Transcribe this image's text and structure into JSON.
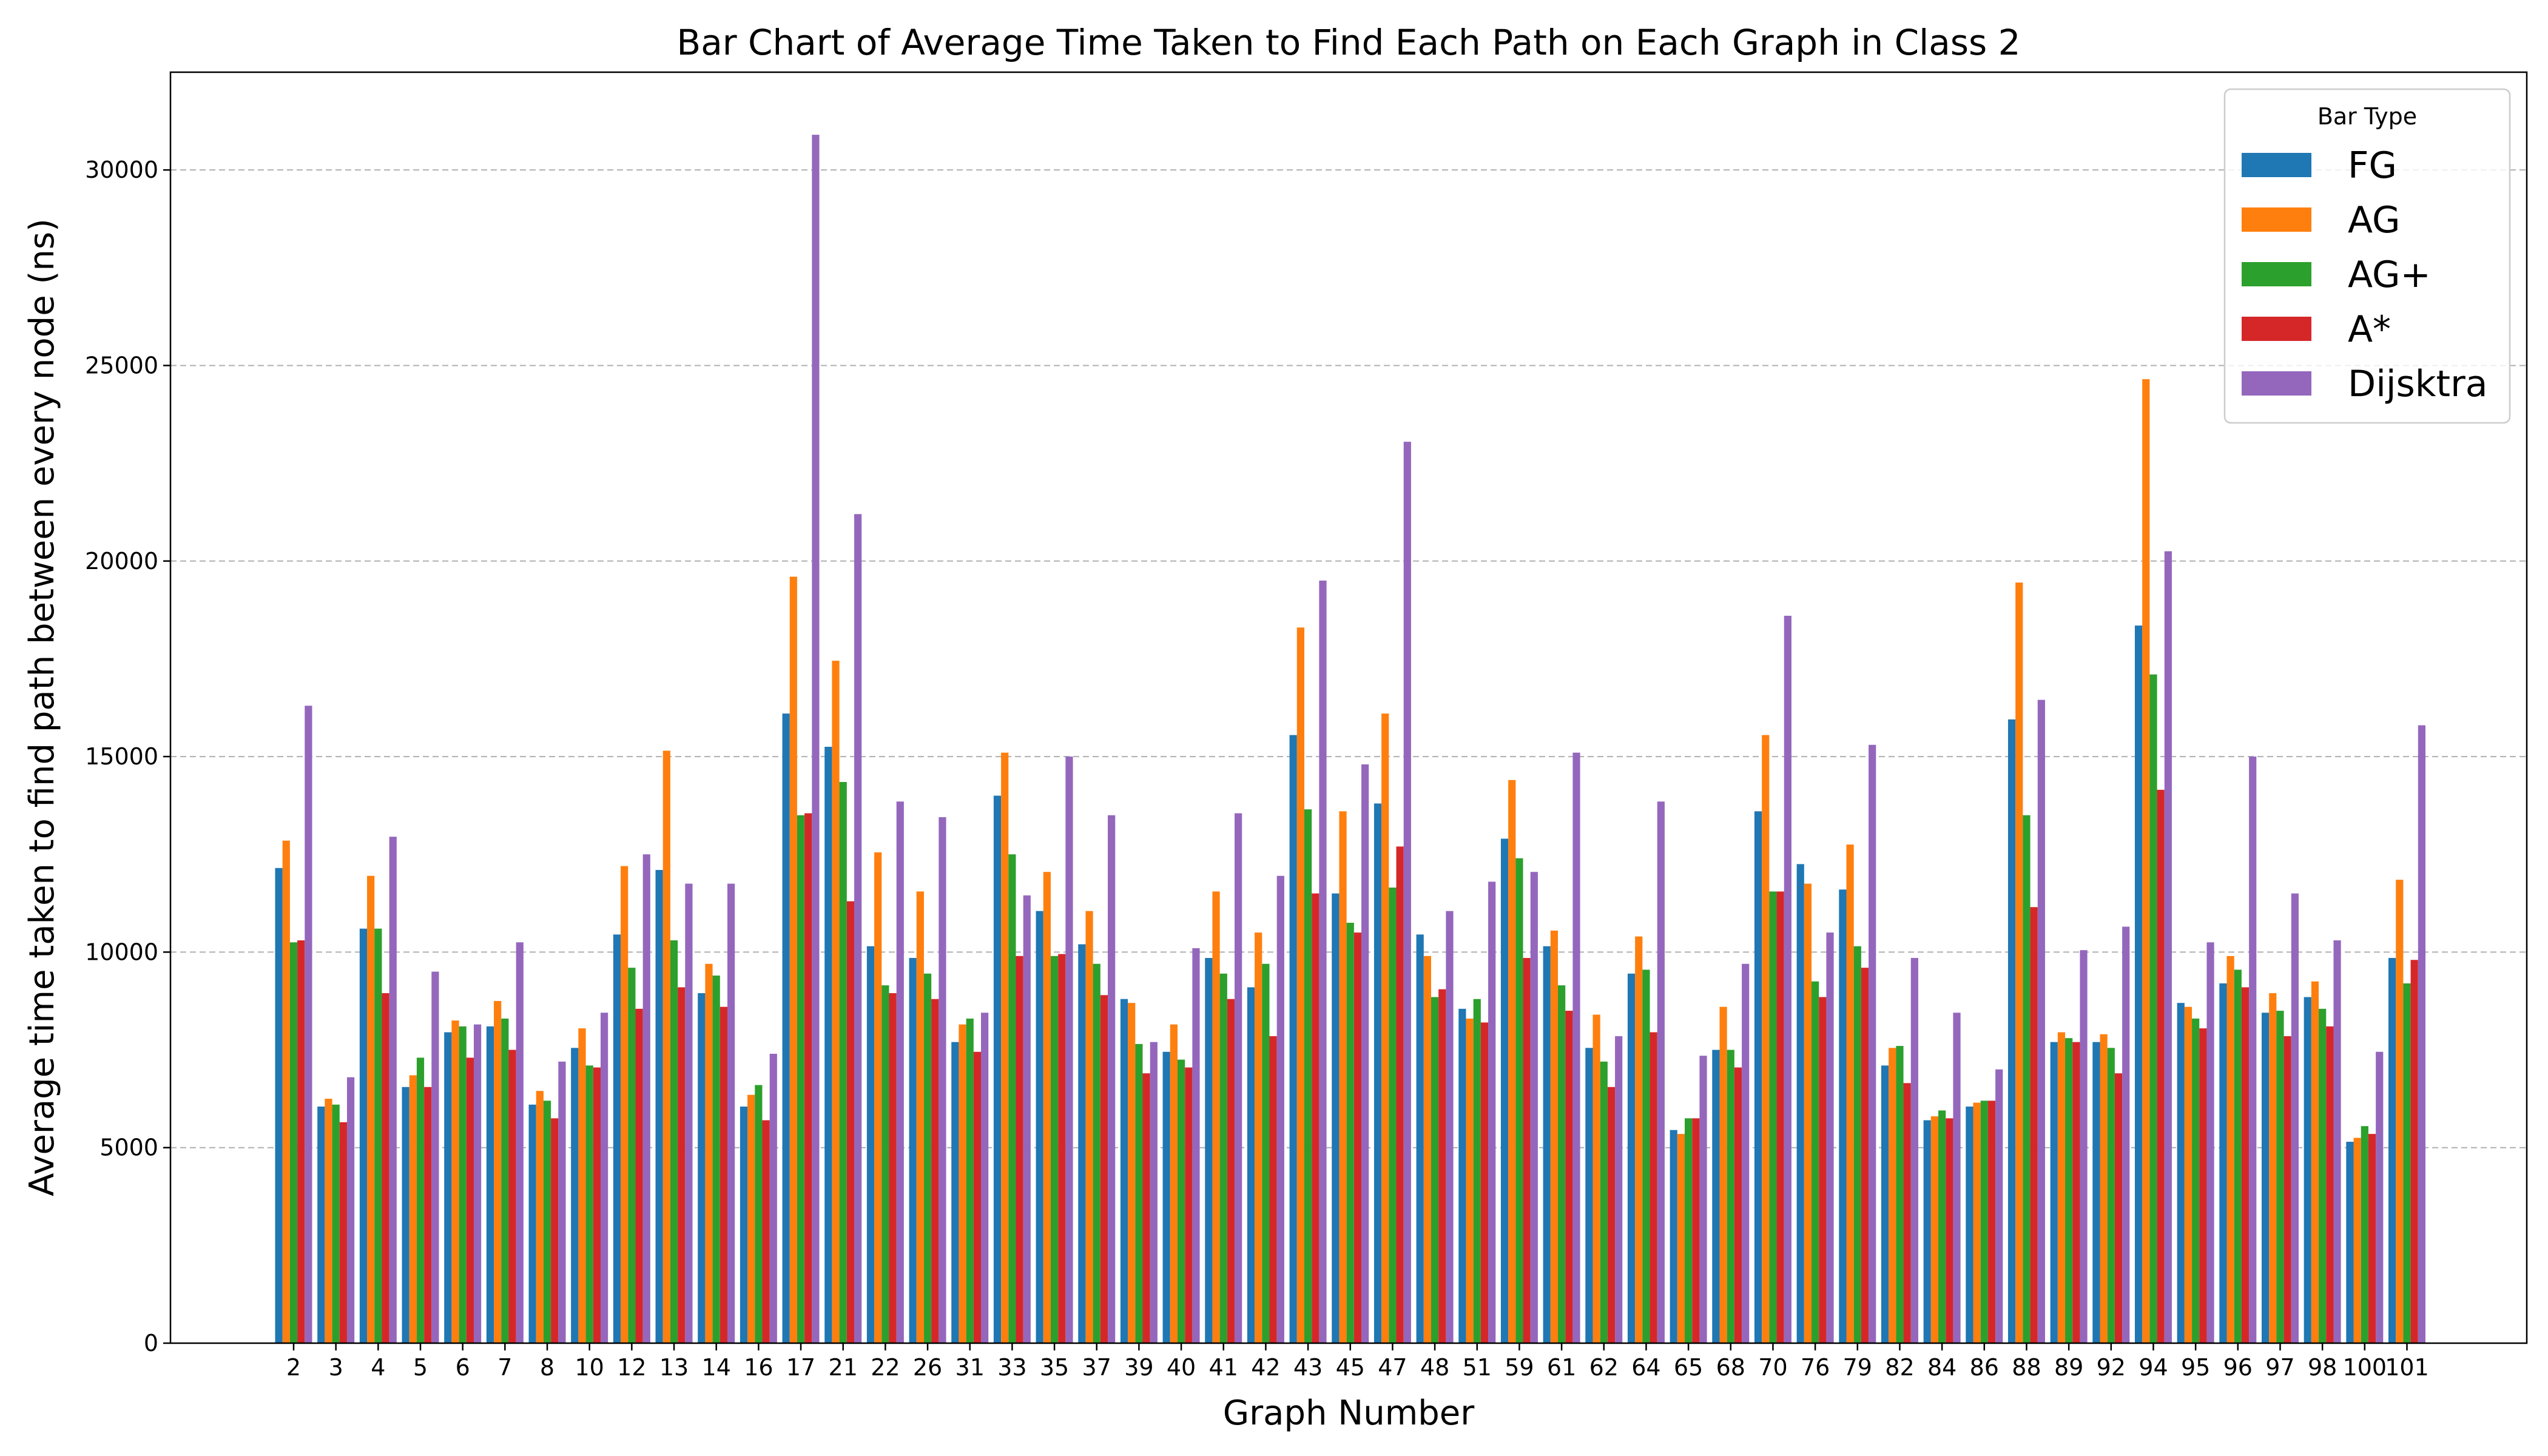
{
  "chart_data": {
    "type": "bar",
    "title": "Bar Chart of Average Time Taken to Find Each Path on Each Graph in Class 2",
    "xlabel": "Graph Number",
    "ylabel": "Average time taken to find path between every node (ns)",
    "ylim": [
      0,
      32500
    ],
    "yticks": [
      0,
      5000,
      10000,
      15000,
      20000,
      25000,
      30000
    ],
    "grid": "y-dashed",
    "legend_title": "Bar Type",
    "legend_position": "top-right",
    "categories": [
      "2",
      "3",
      "4",
      "5",
      "6",
      "7",
      "8",
      "10",
      "12",
      "13",
      "14",
      "16",
      "17",
      "21",
      "22",
      "26",
      "31",
      "33",
      "35",
      "37",
      "39",
      "40",
      "41",
      "42",
      "43",
      "45",
      "47",
      "48",
      "51",
      "59",
      "61",
      "62",
      "64",
      "65",
      "68",
      "70",
      "76",
      "79",
      "82",
      "84",
      "86",
      "88",
      "89",
      "92",
      "94",
      "95",
      "96",
      "97",
      "98",
      "100",
      "101"
    ],
    "series": [
      {
        "name": "FG",
        "color": "#1f77b4",
        "values": [
          12150,
          6050,
          10600,
          6550,
          7950,
          8100,
          6100,
          7550,
          10450,
          12100,
          8950,
          6050,
          16100,
          15250,
          10150,
          9850,
          7700,
          14000,
          11050,
          10200,
          8800,
          7450,
          9850,
          9100,
          15550,
          11500,
          13800,
          10450,
          8550,
          12900,
          10150,
          7550,
          9450,
          5450,
          7500,
          13600,
          12250,
          11600,
          7100,
          5700,
          6050,
          15950,
          7700,
          7700,
          18350,
          8700,
          9200,
          8450,
          8850,
          5150,
          9850
        ]
      },
      {
        "name": "AG",
        "color": "#ff7f0e",
        "values": [
          12850,
          6250,
          11950,
          6850,
          8250,
          8750,
          6450,
          8050,
          12200,
          15150,
          9700,
          6350,
          19600,
          17450,
          12550,
          11550,
          8150,
          15100,
          12050,
          11050,
          8700,
          8150,
          11550,
          10500,
          18300,
          13600,
          16100,
          9900,
          8300,
          14400,
          10550,
          8400,
          10400,
          5350,
          8600,
          15550,
          11750,
          12750,
          7550,
          5800,
          6150,
          19450,
          7950,
          7900,
          24650,
          8600,
          9900,
          8950,
          9250,
          5250,
          11850
        ]
      },
      {
        "name": "AG+",
        "color": "#2ca02c",
        "values": [
          10250,
          6100,
          10600,
          7300,
          8100,
          8300,
          6200,
          7100,
          9600,
          10300,
          9400,
          6600,
          13500,
          14350,
          9150,
          9450,
          8300,
          12500,
          9900,
          9700,
          7650,
          7250,
          9450,
          9700,
          13650,
          10750,
          11650,
          8850,
          8800,
          12400,
          9150,
          7200,
          9550,
          5750,
          7500,
          11550,
          9250,
          10150,
          7600,
          5950,
          6200,
          13500,
          7800,
          7550,
          17100,
          8300,
          9550,
          8500,
          8550,
          5550,
          9200
        ]
      },
      {
        "name": "A*",
        "color": "#d62728",
        "values": [
          10300,
          5650,
          8950,
          6550,
          7300,
          7500,
          5750,
          7050,
          8550,
          9100,
          8600,
          5700,
          13550,
          11300,
          8950,
          8800,
          7450,
          9900,
          9950,
          8900,
          6900,
          7050,
          8800,
          7850,
          11500,
          10500,
          12700,
          9050,
          8200,
          9850,
          8500,
          6550,
          7950,
          5750,
          7050,
          11550,
          8850,
          9600,
          6650,
          5750,
          6200,
          11150,
          7700,
          6900,
          14150,
          8050,
          9100,
          7850,
          8100,
          5350,
          9800
        ]
      },
      {
        "name": "Dijsktra",
        "color": "#9467bd",
        "values": [
          16300,
          6800,
          12950,
          9500,
          8150,
          10250,
          7200,
          8450,
          12500,
          11750,
          11750,
          7400,
          30900,
          21200,
          13850,
          13450,
          8450,
          11450,
          15000,
          13500,
          7700,
          10100,
          13550,
          11950,
          19500,
          14800,
          23050,
          11050,
          11800,
          12050,
          15100,
          7850,
          13850,
          7350,
          9700,
          18600,
          10500,
          15300,
          9850,
          8450,
          7000,
          16450,
          10050,
          10650,
          20250,
          10250,
          15000,
          11500,
          10300,
          7450,
          15800
        ]
      }
    ]
  }
}
